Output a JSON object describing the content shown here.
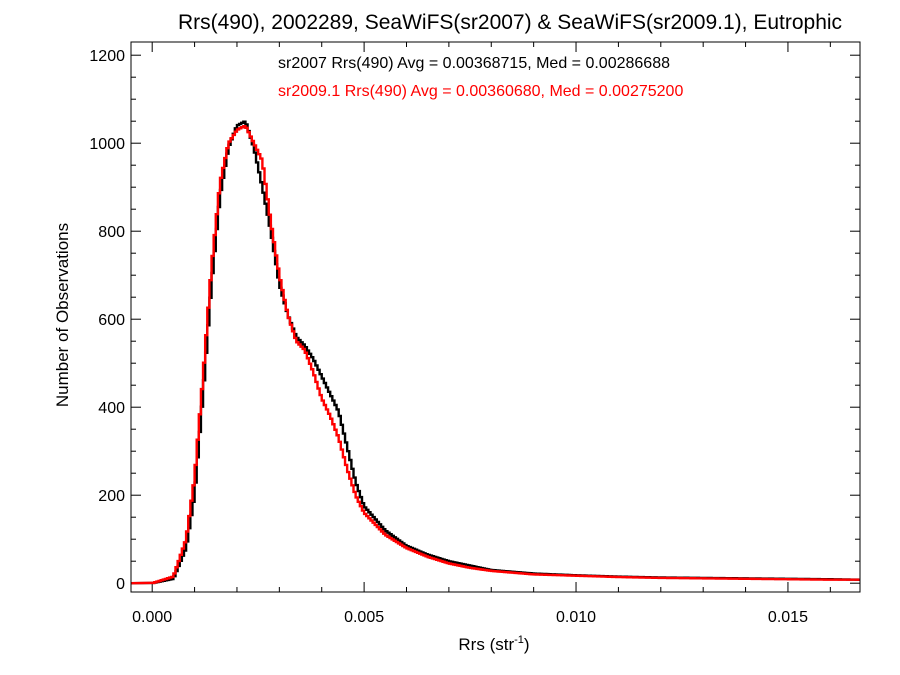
{
  "chart_data": {
    "type": "line",
    "style": "step-histogram",
    "title": "Rrs(490), 2002289, SeaWiFS(sr2007) & SeaWiFS(sr2009.1), Eutrophic",
    "xlabel": "Rrs (str",
    "xlabel_sup": "-1",
    "xlabel_tail": ")",
    "ylabel": "Number of Observations",
    "xlim": [
      -0.0005,
      0.0167
    ],
    "ylim": [
      -20,
      1230
    ],
    "xticks": [
      0.0,
      0.005,
      0.01,
      0.015
    ],
    "xtick_labels": [
      "0.000",
      "0.005",
      "0.010",
      "0.015"
    ],
    "yticks": [
      0,
      200,
      400,
      600,
      800,
      1000,
      1200
    ],
    "ytick_labels": [
      "0",
      "200",
      "400",
      "600",
      "800",
      "1000",
      "1200"
    ],
    "grid": false,
    "legend_placement": "top-center",
    "series": [
      {
        "name": "sr2007",
        "label": "sr2007 Rrs(490) Avg = 0.00368715, Med = 0.00286688",
        "color": "#000000",
        "x": [
          0.0,
          0.0005,
          0.0008,
          0.001,
          0.0012,
          0.0014,
          0.0016,
          0.0018,
          0.002,
          0.0022,
          0.0024,
          0.0026,
          0.0028,
          0.003,
          0.0032,
          0.0034,
          0.0036,
          0.0038,
          0.004,
          0.0042,
          0.0044,
          0.0046,
          0.0048,
          0.005,
          0.0055,
          0.006,
          0.0065,
          0.007,
          0.0075,
          0.008,
          0.009,
          0.01,
          0.011,
          0.012,
          0.013,
          0.014,
          0.015,
          0.016,
          0.0167
        ],
        "y": [
          0,
          10,
          80,
          200,
          430,
          680,
          880,
          990,
          1040,
          1050,
          990,
          900,
          800,
          680,
          610,
          560,
          540,
          510,
          470,
          430,
          390,
          310,
          230,
          175,
          120,
          85,
          65,
          50,
          40,
          30,
          22,
          18,
          15,
          13,
          12,
          11,
          10,
          9,
          8
        ]
      },
      {
        "name": "sr2009.1",
        "label": "sr2009.1 Rrs(490) Avg = 0.00360680, Med = 0.00275200",
        "color": "#ff0000",
        "x": [
          0.0,
          0.0005,
          0.0008,
          0.001,
          0.0012,
          0.0014,
          0.0016,
          0.0018,
          0.002,
          0.0022,
          0.0024,
          0.0026,
          0.0028,
          0.003,
          0.0032,
          0.0034,
          0.0036,
          0.0038,
          0.004,
          0.0042,
          0.0044,
          0.0046,
          0.0048,
          0.005,
          0.0055,
          0.006,
          0.0065,
          0.007,
          0.0075,
          0.008,
          0.009,
          0.01,
          0.011,
          0.012,
          0.013,
          0.014,
          0.015,
          0.016,
          0.0167
        ],
        "y": [
          0,
          15,
          100,
          240,
          470,
          720,
          910,
          1000,
          1030,
          1040,
          1000,
          960,
          820,
          700,
          610,
          550,
          530,
          480,
          420,
          380,
          330,
          260,
          200,
          160,
          110,
          80,
          60,
          45,
          35,
          28,
          20,
          17,
          14,
          12,
          11,
          10,
          9,
          8,
          8
        ]
      }
    ]
  }
}
